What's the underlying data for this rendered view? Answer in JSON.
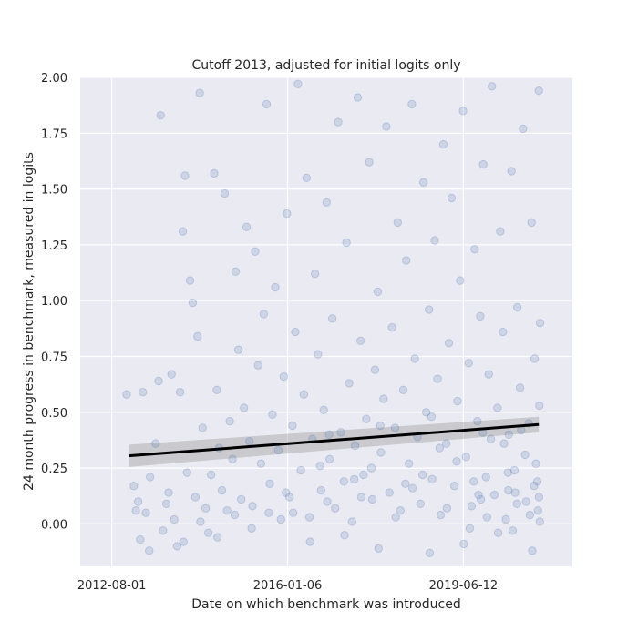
{
  "chart_data": {
    "type": "scatter",
    "title": "Cutoff 2013, adjusted for initial logits only",
    "xlabel": "Date on which benchmark was introduced",
    "ylabel": "24 month progress in benchmark, measured in logits",
    "xlim": [
      "2011-12-20",
      "2021-07-28"
    ],
    "ylim": [
      -0.19,
      2.0
    ],
    "x_ticks": [
      "2012-08-01",
      "2016-01-06",
      "2019-06-12"
    ],
    "y_ticks": [
      0.0,
      0.25,
      0.5,
      0.75,
      1.0,
      1.25,
      1.5,
      1.75,
      2.0
    ],
    "y_tick_labels": [
      "0.00",
      "0.25",
      "0.50",
      "0.75",
      "1.00",
      "1.25",
      "1.50",
      "1.75",
      "2.00"
    ],
    "grid": true,
    "style": {
      "background": "#EAEAF2",
      "point_color": "#4C72B0",
      "point_opacity": 0.18,
      "line_color": "#000000",
      "band_color": "#8c8c8c"
    },
    "regression": {
      "x": [
        "2012-12-01",
        "2020-12-01"
      ],
      "y": [
        0.305,
        0.445
      ],
      "ci_lower": [
        0.255,
        0.41
      ],
      "ci_upper": [
        0.355,
        0.48
      ]
    },
    "points": [
      {
        "x": "2012-11-15",
        "y": 0.58
      },
      {
        "x": "2013-01-05",
        "y": 0.17
      },
      {
        "x": "2013-01-20",
        "y": 0.06
      },
      {
        "x": "2013-02-05",
        "y": 0.1
      },
      {
        "x": "2013-02-20",
        "y": -0.07
      },
      {
        "x": "2013-03-10",
        "y": 0.59
      },
      {
        "x": "2013-04-01",
        "y": 0.05
      },
      {
        "x": "2013-05-01",
        "y": 0.21
      },
      {
        "x": "2013-06-10",
        "y": 0.36
      },
      {
        "x": "2013-07-01",
        "y": 0.64
      },
      {
        "x": "2013-07-15",
        "y": 1.83
      },
      {
        "x": "2013-08-01",
        "y": -0.03
      },
      {
        "x": "2013-09-10",
        "y": 0.14
      },
      {
        "x": "2013-10-01",
        "y": 0.67
      },
      {
        "x": "2013-10-20",
        "y": 0.02
      },
      {
        "x": "2013-11-10",
        "y": -0.1
      },
      {
        "x": "2013-12-01",
        "y": 0.59
      },
      {
        "x": "2013-12-20",
        "y": 1.31
      },
      {
        "x": "2014-01-05",
        "y": 1.56
      },
      {
        "x": "2014-01-20",
        "y": 0.23
      },
      {
        "x": "2014-02-10",
        "y": 1.09
      },
      {
        "x": "2014-03-01",
        "y": 0.99
      },
      {
        "x": "2014-03-20",
        "y": 0.12
      },
      {
        "x": "2014-04-05",
        "y": 0.84
      },
      {
        "x": "2014-04-20",
        "y": 1.93
      },
      {
        "x": "2014-05-10",
        "y": 0.43
      },
      {
        "x": "2014-06-01",
        "y": 0.07
      },
      {
        "x": "2014-06-20",
        "y": -0.04
      },
      {
        "x": "2014-07-10",
        "y": 0.22
      },
      {
        "x": "2014-08-01",
        "y": 1.57
      },
      {
        "x": "2014-08-20",
        "y": 0.6
      },
      {
        "x": "2014-09-05",
        "y": 0.34
      },
      {
        "x": "2014-09-25",
        "y": 0.15
      },
      {
        "x": "2014-10-15",
        "y": 1.48
      },
      {
        "x": "2014-11-01",
        "y": 0.06
      },
      {
        "x": "2014-11-20",
        "y": 0.46
      },
      {
        "x": "2014-12-10",
        "y": 0.29
      },
      {
        "x": "2015-01-01",
        "y": 1.13
      },
      {
        "x": "2015-01-20",
        "y": 0.78
      },
      {
        "x": "2015-02-10",
        "y": 0.11
      },
      {
        "x": "2015-03-01",
        "y": 0.52
      },
      {
        "x": "2015-03-20",
        "y": 1.33
      },
      {
        "x": "2015-04-10",
        "y": 0.37
      },
      {
        "x": "2015-05-01",
        "y": 0.08
      },
      {
        "x": "2015-05-20",
        "y": 1.22
      },
      {
        "x": "2015-06-10",
        "y": 0.71
      },
      {
        "x": "2015-07-01",
        "y": 0.27
      },
      {
        "x": "2015-07-20",
        "y": 0.94
      },
      {
        "x": "2015-08-10",
        "y": 1.88
      },
      {
        "x": "2015-09-01",
        "y": 0.18
      },
      {
        "x": "2015-09-20",
        "y": 0.49
      },
      {
        "x": "2015-10-10",
        "y": 1.06
      },
      {
        "x": "2015-11-01",
        "y": 0.33
      },
      {
        "x": "2015-11-20",
        "y": 0.02
      },
      {
        "x": "2015-12-10",
        "y": 0.66
      },
      {
        "x": "2016-01-01",
        "y": 1.39
      },
      {
        "x": "2016-01-20",
        "y": 0.12
      },
      {
        "x": "2016-02-10",
        "y": 0.44
      },
      {
        "x": "2016-03-01",
        "y": 0.86
      },
      {
        "x": "2016-03-20",
        "y": 1.97
      },
      {
        "x": "2016-04-10",
        "y": 0.24
      },
      {
        "x": "2016-05-01",
        "y": 0.58
      },
      {
        "x": "2016-05-20",
        "y": 1.55
      },
      {
        "x": "2016-06-10",
        "y": 0.03
      },
      {
        "x": "2016-07-01",
        "y": 0.38
      },
      {
        "x": "2016-07-20",
        "y": 1.12
      },
      {
        "x": "2016-08-10",
        "y": 0.76
      },
      {
        "x": "2016-09-01",
        "y": 0.15
      },
      {
        "x": "2016-09-20",
        "y": 0.51
      },
      {
        "x": "2016-10-10",
        "y": 1.44
      },
      {
        "x": "2016-11-01",
        "y": 0.29
      },
      {
        "x": "2016-11-20",
        "y": 0.92
      },
      {
        "x": "2016-12-10",
        "y": 0.07
      },
      {
        "x": "2017-01-01",
        "y": 1.8
      },
      {
        "x": "2017-01-20",
        "y": 0.41
      },
      {
        "x": "2017-02-10",
        "y": 0.19
      },
      {
        "x": "2017-03-01",
        "y": 1.26
      },
      {
        "x": "2017-03-20",
        "y": 0.63
      },
      {
        "x": "2017-04-10",
        "y": 0.01
      },
      {
        "x": "2017-05-01",
        "y": 0.35
      },
      {
        "x": "2017-05-20",
        "y": 1.91
      },
      {
        "x": "2017-06-10",
        "y": 0.82
      },
      {
        "x": "2017-07-01",
        "y": 0.22
      },
      {
        "x": "2017-07-20",
        "y": 0.47
      },
      {
        "x": "2017-08-10",
        "y": 1.62
      },
      {
        "x": "2017-09-01",
        "y": 0.11
      },
      {
        "x": "2017-09-20",
        "y": 0.69
      },
      {
        "x": "2017-10-10",
        "y": 1.04
      },
      {
        "x": "2017-11-01",
        "y": 0.32
      },
      {
        "x": "2017-11-20",
        "y": 0.56
      },
      {
        "x": "2017-12-10",
        "y": 1.78
      },
      {
        "x": "2018-01-01",
        "y": 0.14
      },
      {
        "x": "2018-01-20",
        "y": 0.88
      },
      {
        "x": "2018-02-10",
        "y": 0.43
      },
      {
        "x": "2018-03-01",
        "y": 1.35
      },
      {
        "x": "2018-03-20",
        "y": 0.06
      },
      {
        "x": "2018-04-10",
        "y": 0.6
      },
      {
        "x": "2018-05-01",
        "y": 1.18
      },
      {
        "x": "2018-05-20",
        "y": 0.27
      },
      {
        "x": "2018-06-10",
        "y": 1.88
      },
      {
        "x": "2018-07-01",
        "y": 0.74
      },
      {
        "x": "2018-07-20",
        "y": 0.39
      },
      {
        "x": "2018-08-10",
        "y": 0.09
      },
      {
        "x": "2018-09-01",
        "y": 1.53
      },
      {
        "x": "2018-09-20",
        "y": 0.5
      },
      {
        "x": "2018-10-10",
        "y": 0.96
      },
      {
        "x": "2018-11-01",
        "y": 0.2
      },
      {
        "x": "2018-11-20",
        "y": 1.27
      },
      {
        "x": "2018-12-10",
        "y": 0.65
      },
      {
        "x": "2019-01-01",
        "y": 0.04
      },
      {
        "x": "2019-01-20",
        "y": 1.7
      },
      {
        "x": "2019-02-10",
        "y": 0.36
      },
      {
        "x": "2019-03-01",
        "y": 0.81
      },
      {
        "x": "2019-03-20",
        "y": 1.46
      },
      {
        "x": "2019-04-10",
        "y": 0.17
      },
      {
        "x": "2019-05-01",
        "y": 0.55
      },
      {
        "x": "2019-05-20",
        "y": 1.09
      },
      {
        "x": "2019-06-10",
        "y": 1.85
      },
      {
        "x": "2019-07-01",
        "y": 0.3
      },
      {
        "x": "2019-07-20",
        "y": 0.72
      },
      {
        "x": "2019-08-10",
        "y": 0.08
      },
      {
        "x": "2019-09-01",
        "y": 1.23
      },
      {
        "x": "2019-09-20",
        "y": 0.46
      },
      {
        "x": "2019-10-10",
        "y": 0.93
      },
      {
        "x": "2019-11-01",
        "y": 1.61
      },
      {
        "x": "2019-11-20",
        "y": 0.21
      },
      {
        "x": "2019-12-10",
        "y": 0.67
      },
      {
        "x": "2020-01-01",
        "y": 1.96
      },
      {
        "x": "2020-01-20",
        "y": 0.13
      },
      {
        "x": "2020-02-10",
        "y": 0.52
      },
      {
        "x": "2020-03-01",
        "y": 1.31
      },
      {
        "x": "2020-03-20",
        "y": 0.86
      },
      {
        "x": "2020-04-10",
        "y": 0.02
      },
      {
        "x": "2020-05-01",
        "y": 0.4
      },
      {
        "x": "2020-05-20",
        "y": 1.58
      },
      {
        "x": "2020-06-10",
        "y": 0.24
      },
      {
        "x": "2020-07-01",
        "y": 0.97
      },
      {
        "x": "2020-07-20",
        "y": 0.61
      },
      {
        "x": "2020-08-10",
        "y": 1.77
      },
      {
        "x": "2020-09-01",
        "y": 0.1
      },
      {
        "x": "2020-09-20",
        "y": 0.45
      },
      {
        "x": "2020-10-10",
        "y": 1.35
      },
      {
        "x": "2020-11-01",
        "y": 0.74
      },
      {
        "x": "2020-11-20",
        "y": 0.19
      },
      {
        "x": "2020-12-01",
        "y": 1.94
      },
      {
        "x": "2020-12-05",
        "y": 0.53
      },
      {
        "x": "2020-12-08",
        "y": 0.01
      },
      {
        "x": "2020-12-10",
        "y": 0.9
      },
      {
        "x": "2016-02-15",
        "y": 0.05
      },
      {
        "x": "2016-06-15",
        "y": -0.08
      },
      {
        "x": "2016-10-15",
        "y": 0.1
      },
      {
        "x": "2017-02-15",
        "y": -0.05
      },
      {
        "x": "2017-06-15",
        "y": 0.12
      },
      {
        "x": "2017-10-15",
        "y": -0.11
      },
      {
        "x": "2018-02-15",
        "y": 0.03
      },
      {
        "x": "2018-06-15",
        "y": 0.16
      },
      {
        "x": "2018-10-15",
        "y": -0.13
      },
      {
        "x": "2019-02-15",
        "y": 0.07
      },
      {
        "x": "2019-06-15",
        "y": -0.09
      },
      {
        "x": "2019-10-15",
        "y": 0.11
      },
      {
        "x": "2020-02-15",
        "y": -0.04
      },
      {
        "x": "2020-06-15",
        "y": 0.14
      },
      {
        "x": "2020-10-15",
        "y": -0.12
      },
      {
        "x": "2020-11-25",
        "y": 0.06
      },
      {
        "x": "2017-04-25",
        "y": 0.2
      },
      {
        "x": "2017-08-25",
        "y": 0.25
      },
      {
        "x": "2018-04-25",
        "y": 0.18
      },
      {
        "x": "2018-08-25",
        "y": 0.22
      },
      {
        "x": "2019-04-25",
        "y": 0.28
      },
      {
        "x": "2019-08-25",
        "y": 0.19
      },
      {
        "x": "2020-04-25",
        "y": 0.23
      },
      {
        "x": "2020-08-25",
        "y": 0.31
      },
      {
        "x": "2016-08-25",
        "y": 0.26
      },
      {
        "x": "2015-12-25",
        "y": 0.14
      },
      {
        "x": "2015-08-25",
        "y": 0.05
      },
      {
        "x": "2015-04-25",
        "y": -0.02
      },
      {
        "x": "2014-12-25",
        "y": 0.04
      },
      {
        "x": "2014-08-25",
        "y": -0.06
      },
      {
        "x": "2014-04-25",
        "y": 0.01
      },
      {
        "x": "2013-12-25",
        "y": -0.08
      },
      {
        "x": "2013-08-25",
        "y": 0.09
      },
      {
        "x": "2013-04-25",
        "y": -0.12
      },
      {
        "x": "2018-12-25",
        "y": 0.34
      },
      {
        "x": "2019-12-25",
        "y": 0.38
      },
      {
        "x": "2020-07-28",
        "y": 0.42
      },
      {
        "x": "2020-03-28",
        "y": 0.36
      },
      {
        "x": "2019-10-28",
        "y": 0.41
      },
      {
        "x": "2018-10-28",
        "y": 0.48
      },
      {
        "x": "2017-10-28",
        "y": 0.44
      },
      {
        "x": "2016-10-28",
        "y": 0.4
      },
      {
        "x": "2020-09-28",
        "y": 0.04
      },
      {
        "x": "2020-10-28",
        "y": 0.17
      },
      {
        "x": "2020-11-10",
        "y": 0.27
      },
      {
        "x": "2020-12-02",
        "y": 0.12
      },
      {
        "x": "2020-06-28",
        "y": 0.09
      },
      {
        "x": "2020-05-28",
        "y": -0.03
      },
      {
        "x": "2020-04-28",
        "y": 0.15
      },
      {
        "x": "2019-11-28",
        "y": 0.03
      },
      {
        "x": "2019-09-28",
        "y": 0.13
      },
      {
        "x": "2019-07-28",
        "y": -0.02
      }
    ]
  }
}
